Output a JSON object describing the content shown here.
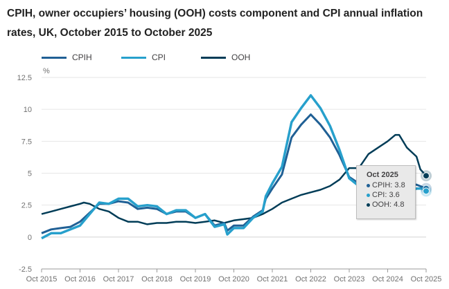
{
  "chart_data": {
    "type": "line",
    "title": "CPIH, owner occupiers’ housing (OOH) costs component and CPI annual inflation rates, UK, October 2015 to October 2025",
    "ylabel": "%",
    "xlabel": "",
    "ylim": [
      -2.5,
      12.5
    ],
    "yticks": [
      "-2.5",
      "0",
      "2.5",
      "5",
      "7.5",
      "10",
      "12.5"
    ],
    "xticks": [
      "Oct 2015",
      "Oct 2016",
      "Oct 2017",
      "Oct 2018",
      "Oct 2019",
      "Oct 2020",
      "Oct 2021",
      "Oct 2022",
      "Oct 2023",
      "Oct 2024",
      "Oct 2025"
    ],
    "xlim": [
      2015.75,
      2025.75
    ],
    "grid": true,
    "legend_position": "top-left",
    "series": [
      {
        "name": "CPIH",
        "color": "#206095",
        "points": [
          [
            2015.75,
            0.3
          ],
          [
            2016.0,
            0.6
          ],
          [
            2016.25,
            0.7
          ],
          [
            2016.5,
            0.8
          ],
          [
            2016.75,
            1.2
          ],
          [
            2017.0,
            1.9
          ],
          [
            2017.25,
            2.6
          ],
          [
            2017.5,
            2.6
          ],
          [
            2017.75,
            2.8
          ],
          [
            2018.0,
            2.7
          ],
          [
            2018.25,
            2.2
          ],
          [
            2018.5,
            2.3
          ],
          [
            2018.75,
            2.2
          ],
          [
            2019.0,
            1.8
          ],
          [
            2019.25,
            2.0
          ],
          [
            2019.5,
            2.0
          ],
          [
            2019.75,
            1.5
          ],
          [
            2020.0,
            1.8
          ],
          [
            2020.25,
            0.9
          ],
          [
            2020.5,
            1.1
          ],
          [
            2020.58,
            0.5
          ],
          [
            2020.75,
            0.9
          ],
          [
            2021.0,
            0.9
          ],
          [
            2021.25,
            1.6
          ],
          [
            2021.5,
            2.1
          ],
          [
            2021.58,
            3.0
          ],
          [
            2021.75,
            3.8
          ],
          [
            2022.0,
            4.9
          ],
          [
            2022.25,
            7.8
          ],
          [
            2022.5,
            8.8
          ],
          [
            2022.75,
            9.6
          ],
          [
            2023.0,
            8.8
          ],
          [
            2023.25,
            7.8
          ],
          [
            2023.5,
            6.4
          ],
          [
            2023.75,
            4.7
          ],
          [
            2024.0,
            4.2
          ],
          [
            2024.25,
            3.0
          ],
          [
            2024.5,
            3.1
          ],
          [
            2024.75,
            3.2
          ],
          [
            2025.0,
            3.9
          ],
          [
            2025.25,
            4.1
          ],
          [
            2025.5,
            4.1
          ],
          [
            2025.75,
            3.8
          ]
        ]
      },
      {
        "name": "CPI",
        "color": "#27a0cc",
        "points": [
          [
            2015.75,
            -0.1
          ],
          [
            2016.0,
            0.3
          ],
          [
            2016.25,
            0.3
          ],
          [
            2016.5,
            0.6
          ],
          [
            2016.75,
            0.9
          ],
          [
            2017.0,
            1.8
          ],
          [
            2017.25,
            2.7
          ],
          [
            2017.5,
            2.6
          ],
          [
            2017.75,
            3.0
          ],
          [
            2018.0,
            3.0
          ],
          [
            2018.25,
            2.4
          ],
          [
            2018.5,
            2.5
          ],
          [
            2018.75,
            2.4
          ],
          [
            2019.0,
            1.8
          ],
          [
            2019.25,
            2.1
          ],
          [
            2019.5,
            2.1
          ],
          [
            2019.75,
            1.5
          ],
          [
            2020.0,
            1.8
          ],
          [
            2020.25,
            0.8
          ],
          [
            2020.5,
            1.0
          ],
          [
            2020.58,
            0.2
          ],
          [
            2020.75,
            0.7
          ],
          [
            2021.0,
            0.7
          ],
          [
            2021.25,
            1.5
          ],
          [
            2021.5,
            2.0
          ],
          [
            2021.58,
            3.2
          ],
          [
            2021.75,
            4.2
          ],
          [
            2022.0,
            5.5
          ],
          [
            2022.25,
            9.0
          ],
          [
            2022.5,
            10.1
          ],
          [
            2022.75,
            11.1
          ],
          [
            2023.0,
            10.1
          ],
          [
            2023.25,
            8.7
          ],
          [
            2023.5,
            6.8
          ],
          [
            2023.75,
            4.6
          ],
          [
            2024.0,
            4.0
          ],
          [
            2024.25,
            2.3
          ],
          [
            2024.5,
            2.2
          ],
          [
            2024.67,
            1.7
          ],
          [
            2024.75,
            2.3
          ],
          [
            2025.0,
            3.0
          ],
          [
            2025.25,
            3.5
          ],
          [
            2025.5,
            3.8
          ],
          [
            2025.67,
            3.8
          ],
          [
            2025.75,
            3.6
          ]
        ]
      },
      {
        "name": "OOH",
        "color": "#003c57",
        "points": [
          [
            2015.75,
            1.8
          ],
          [
            2016.0,
            2.0
          ],
          [
            2016.25,
            2.2
          ],
          [
            2016.5,
            2.4
          ],
          [
            2016.75,
            2.6
          ],
          [
            2016.85,
            2.7
          ],
          [
            2017.0,
            2.6
          ],
          [
            2017.25,
            2.2
          ],
          [
            2017.5,
            2.0
          ],
          [
            2017.75,
            1.5
          ],
          [
            2018.0,
            1.2
          ],
          [
            2018.25,
            1.2
          ],
          [
            2018.5,
            1.0
          ],
          [
            2018.75,
            1.1
          ],
          [
            2019.0,
            1.1
          ],
          [
            2019.25,
            1.2
          ],
          [
            2019.5,
            1.2
          ],
          [
            2019.75,
            1.1
          ],
          [
            2020.0,
            1.2
          ],
          [
            2020.25,
            1.3
          ],
          [
            2020.5,
            1.1
          ],
          [
            2020.75,
            1.3
          ],
          [
            2021.0,
            1.4
          ],
          [
            2021.25,
            1.5
          ],
          [
            2021.5,
            1.8
          ],
          [
            2021.75,
            2.2
          ],
          [
            2022.0,
            2.7
          ],
          [
            2022.25,
            3.0
          ],
          [
            2022.5,
            3.3
          ],
          [
            2022.75,
            3.5
          ],
          [
            2023.0,
            3.7
          ],
          [
            2023.25,
            4.0
          ],
          [
            2023.5,
            4.5
          ],
          [
            2023.75,
            5.4
          ],
          [
            2024.0,
            5.4
          ],
          [
            2024.25,
            6.5
          ],
          [
            2024.5,
            7.0
          ],
          [
            2024.75,
            7.5
          ],
          [
            2024.95,
            8.0
          ],
          [
            2025.05,
            8.0
          ],
          [
            2025.25,
            7.0
          ],
          [
            2025.5,
            6.3
          ],
          [
            2025.6,
            5.3
          ],
          [
            2025.75,
            4.8
          ]
        ]
      }
    ],
    "tooltip": {
      "title": "Oct 2025",
      "rows": [
        {
          "label": "CPIH: 3.8",
          "color": "#206095"
        },
        {
          "label": "CPI: 3.6",
          "color": "#27a0cc"
        },
        {
          "label": "OOH: 4.8",
          "color": "#003c57"
        }
      ]
    }
  }
}
